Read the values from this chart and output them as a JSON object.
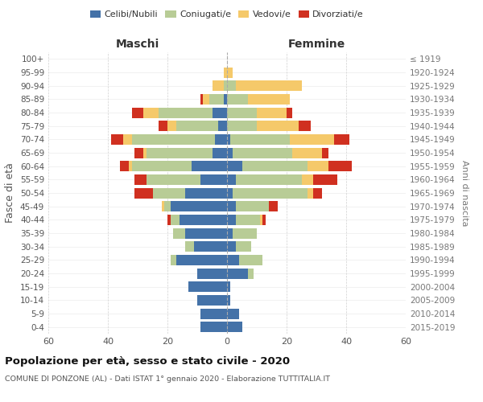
{
  "age_groups": [
    "0-4",
    "5-9",
    "10-14",
    "15-19",
    "20-24",
    "25-29",
    "30-34",
    "35-39",
    "40-44",
    "45-49",
    "50-54",
    "55-59",
    "60-64",
    "65-69",
    "70-74",
    "75-79",
    "80-84",
    "85-89",
    "90-94",
    "95-99",
    "100+"
  ],
  "birth_years": [
    "2015-2019",
    "2010-2014",
    "2005-2009",
    "2000-2004",
    "1995-1999",
    "1990-1994",
    "1985-1989",
    "1980-1984",
    "1975-1979",
    "1970-1974",
    "1965-1969",
    "1960-1964",
    "1955-1959",
    "1950-1954",
    "1945-1949",
    "1940-1944",
    "1935-1939",
    "1930-1934",
    "1925-1929",
    "1920-1924",
    "≤ 1919"
  ],
  "maschi": {
    "celibi": [
      9,
      9,
      10,
      13,
      10,
      17,
      11,
      14,
      16,
      19,
      14,
      9,
      12,
      5,
      4,
      3,
      5,
      1,
      0,
      0,
      0
    ],
    "coniugati": [
      0,
      0,
      0,
      0,
      0,
      2,
      3,
      4,
      3,
      2,
      11,
      18,
      20,
      22,
      28,
      14,
      18,
      5,
      1,
      0,
      0
    ],
    "vedovi": [
      0,
      0,
      0,
      0,
      0,
      0,
      0,
      0,
      0,
      1,
      0,
      0,
      1,
      1,
      3,
      3,
      5,
      2,
      4,
      1,
      0
    ],
    "divorziati": [
      0,
      0,
      0,
      0,
      0,
      0,
      0,
      0,
      1,
      0,
      6,
      4,
      3,
      3,
      4,
      3,
      4,
      1,
      0,
      0,
      0
    ]
  },
  "femmine": {
    "nubili": [
      5,
      4,
      1,
      1,
      7,
      4,
      3,
      2,
      3,
      3,
      2,
      3,
      5,
      2,
      1,
      0,
      0,
      0,
      0,
      0,
      0
    ],
    "coniugate": [
      0,
      0,
      0,
      0,
      2,
      8,
      5,
      8,
      8,
      11,
      25,
      22,
      22,
      20,
      20,
      10,
      10,
      7,
      3,
      0,
      0
    ],
    "vedove": [
      0,
      0,
      0,
      0,
      0,
      0,
      0,
      0,
      1,
      0,
      2,
      4,
      7,
      10,
      15,
      14,
      10,
      14,
      22,
      2,
      0
    ],
    "divorziate": [
      0,
      0,
      0,
      0,
      0,
      0,
      0,
      0,
      1,
      3,
      3,
      8,
      8,
      2,
      5,
      4,
      2,
      0,
      0,
      0,
      0
    ]
  },
  "colors": {
    "celibi": "#4472a8",
    "coniugati": "#b8cc96",
    "vedovi": "#f5c96a",
    "divorziati": "#d03020"
  },
  "xlim": 60,
  "title": "Popolazione per età, sesso e stato civile - 2020",
  "subtitle": "COMUNE DI PONZONE (AL) - Dati ISTAT 1° gennaio 2020 - Elaborazione TUTTITALIA.IT",
  "ylabel_left": "Fasce di età",
  "ylabel_right": "Anni di nascita",
  "xlabel_maschi": "Maschi",
  "xlabel_femmine": "Femmine",
  "bg_color": "#ffffff",
  "grid_color": "#cccccc"
}
